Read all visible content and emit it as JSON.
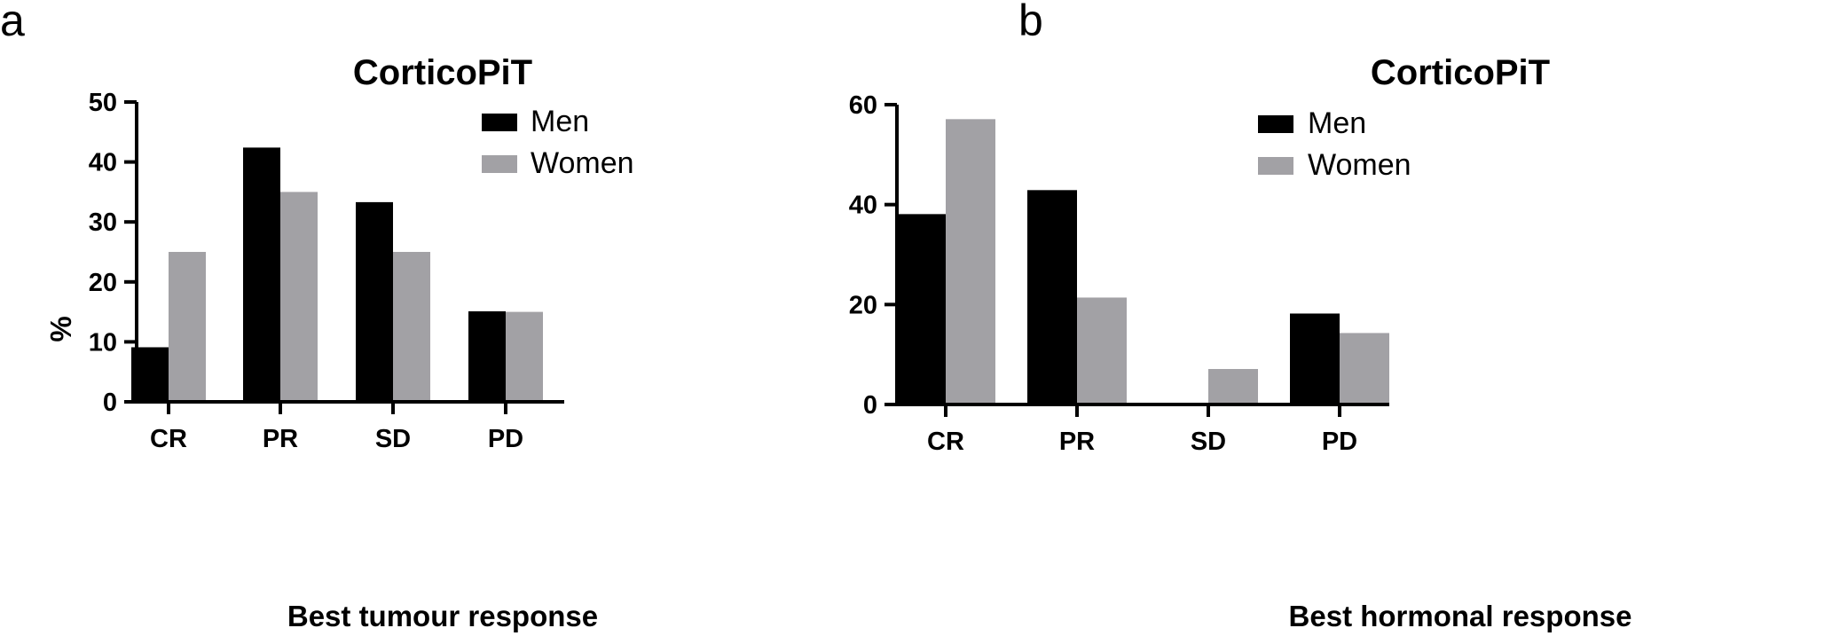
{
  "chart_data": [
    {
      "panel": "a",
      "type": "bar",
      "title": "CorticoPiT",
      "xlabel": "Best tumour response",
      "ylabel": "%",
      "ylim": [
        0,
        50
      ],
      "yticks": [
        0,
        10,
        20,
        30,
        40,
        50
      ],
      "categories": [
        "CR",
        "PR",
        "SD",
        "PD"
      ],
      "legend": "top-right",
      "grid": false,
      "series": [
        {
          "name": "Men",
          "color": "#000000",
          "values": [
            9.1,
            42.4,
            33.3,
            15.1
          ]
        },
        {
          "name": "Women",
          "color": "#a2a1a5",
          "values": [
            25,
            35,
            25,
            15
          ]
        }
      ]
    },
    {
      "panel": "b",
      "type": "bar",
      "title": "CorticoPiT",
      "xlabel": "Best hormonal response",
      "ylabel": "%",
      "ylim": [
        0,
        60
      ],
      "yticks": [
        0,
        20,
        40,
        60
      ],
      "categories": [
        "CR",
        "PR",
        "SD",
        "PD"
      ],
      "legend": "top-right",
      "grid": false,
      "series": [
        {
          "name": "Men",
          "color": "#000000",
          "values": [
            38.1,
            42.9,
            0,
            18.2
          ]
        },
        {
          "name": "Women",
          "color": "#a2a1a5",
          "values": [
            57.1,
            21.4,
            7.1,
            14.3
          ]
        }
      ]
    }
  ]
}
